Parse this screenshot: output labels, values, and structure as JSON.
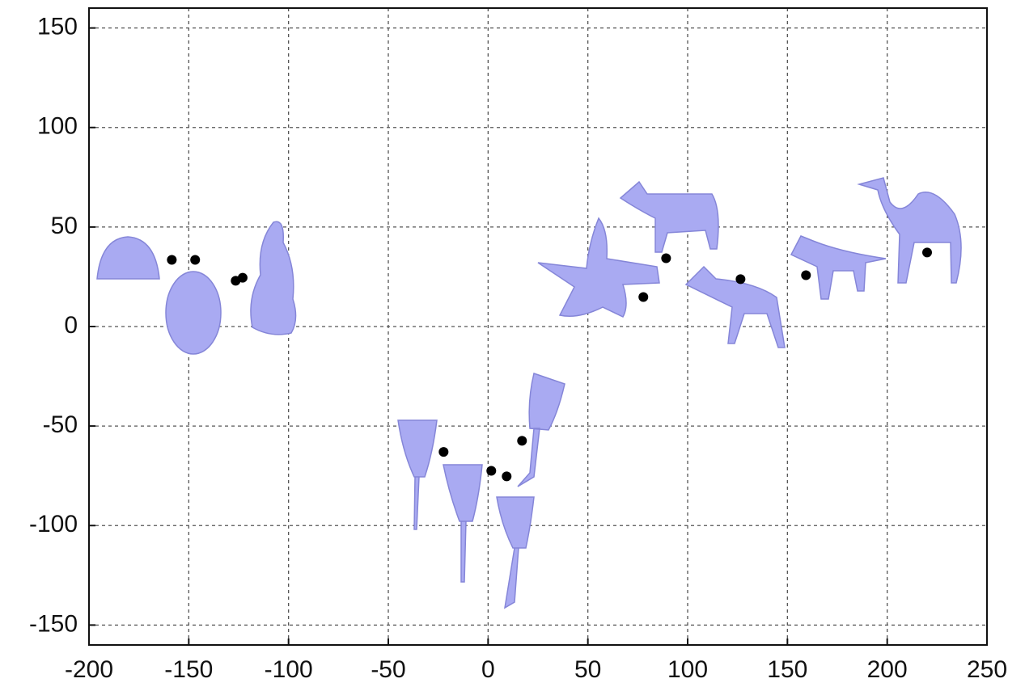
{
  "chart_data": {
    "type": "scatter",
    "x": [
      -158.5,
      -146.8,
      -126.5,
      -123,
      -22.3,
      1.6,
      9.3,
      17,
      77.8,
      89.2,
      126.5,
      159.3,
      220
    ],
    "values": [
      33.5,
      33.5,
      23,
      24.5,
      -63,
      -72.5,
      -75.3,
      -57.4,
      14.8,
      34.3,
      23.8,
      25.8,
      37.2
    ],
    "color": "#000000",
    "xlim": [
      -200,
      250
    ],
    "xticks": [
      -200,
      -150,
      -100,
      -50,
      0,
      50,
      100,
      150,
      200,
      250
    ],
    "ylim": [
      -160,
      160
    ],
    "yticks": [
      -150,
      -100,
      -50,
      0,
      50,
      100,
      150
    ],
    "grid": true
  }
}
